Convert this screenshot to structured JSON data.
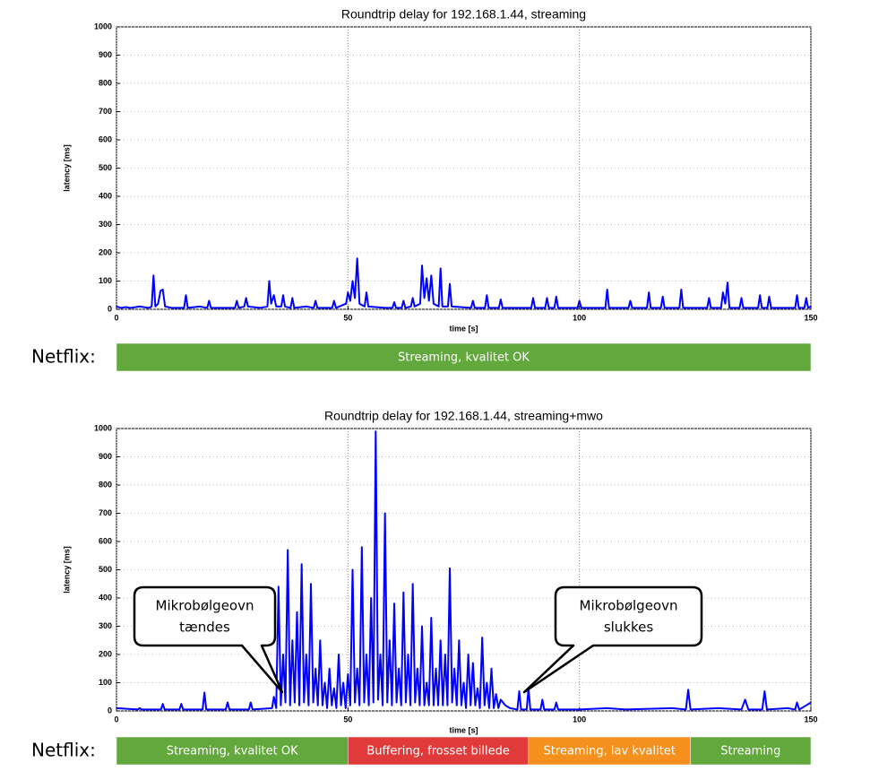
{
  "chart_data": [
    {
      "type": "line",
      "title": "Roundtrip delay for 192.168.1.44, streaming",
      "xlabel": "time [s]",
      "ylabel": "latency [ms]",
      "xlim": [
        0,
        150
      ],
      "ylim": [
        0,
        1000
      ],
      "xticks": [
        0,
        50,
        100,
        150
      ],
      "yticks": [
        0,
        100,
        200,
        300,
        400,
        500,
        600,
        700,
        800,
        900,
        1000
      ],
      "grid": true,
      "color": "#0000ff",
      "x": [
        0,
        1,
        2,
        3,
        5,
        7,
        7.6,
        8,
        8.4,
        9,
        9.5,
        10,
        10.5,
        12,
        14.6,
        15,
        15.4,
        18,
        19.6,
        20,
        20.4,
        24,
        25.6,
        26,
        26.4,
        27.6,
        28,
        28.4,
        31,
        32.6,
        33,
        33.4,
        34,
        34.5,
        35.6,
        36,
        36.4,
        37.6,
        38,
        38.4,
        41,
        42.6,
        43,
        43.4,
        46.6,
        47,
        47.4,
        49.6,
        50,
        50.5,
        51,
        51.5,
        52,
        52.5,
        53.6,
        54,
        54.4,
        58,
        59.6,
        60,
        60.4,
        61.6,
        62,
        62.4,
        63.6,
        64,
        64.4,
        65.6,
        66,
        66.5,
        67,
        67.5,
        68,
        68.5,
        69.6,
        70,
        70.4,
        71.6,
        72,
        72.4,
        76.6,
        77,
        77.4,
        79.6,
        80,
        80.4,
        82.6,
        83,
        83.4,
        89.6,
        90,
        90.4,
        92.6,
        93,
        93.4,
        94.6,
        95,
        95.4,
        99.6,
        100,
        100.4,
        105.6,
        106,
        106.4,
        110.6,
        111,
        111.4,
        114.6,
        115,
        115.4,
        117.6,
        118,
        118.4,
        121.6,
        122,
        122.4,
        127.6,
        128,
        128.4,
        130.6,
        131,
        131.5,
        132,
        132.4,
        134.6,
        135,
        135.4,
        138.6,
        139,
        139.4,
        140.6,
        141,
        141.4,
        146.6,
        147,
        147.4,
        148.6,
        149,
        149.4,
        150
      ],
      "values": [
        10,
        5,
        8,
        5,
        10,
        5,
        10,
        120,
        10,
        20,
        65,
        70,
        10,
        5,
        5,
        50,
        5,
        10,
        5,
        30,
        5,
        5,
        5,
        30,
        5,
        10,
        40,
        10,
        5,
        10,
        100,
        20,
        50,
        10,
        10,
        50,
        10,
        5,
        40,
        5,
        10,
        5,
        30,
        5,
        5,
        30,
        5,
        20,
        60,
        30,
        100,
        40,
        180,
        20,
        10,
        60,
        10,
        5,
        5,
        25,
        5,
        5,
        30,
        5,
        10,
        40,
        10,
        20,
        155,
        40,
        110,
        30,
        120,
        20,
        10,
        145,
        10,
        10,
        90,
        10,
        5,
        30,
        5,
        5,
        50,
        5,
        5,
        35,
        5,
        5,
        40,
        5,
        5,
        40,
        5,
        5,
        45,
        5,
        5,
        30,
        5,
        5,
        70,
        5,
        5,
        30,
        5,
        5,
        60,
        5,
        5,
        45,
        5,
        5,
        70,
        5,
        5,
        40,
        5,
        5,
        60,
        20,
        95,
        5,
        5,
        40,
        5,
        5,
        50,
        5,
        5,
        45,
        5,
        5,
        50,
        5,
        5,
        40,
        5,
        10
      ],
      "netflix": {
        "label": "Netflix:",
        "segments": [
          {
            "label": "Streaming, kvalitet OK",
            "start": 0,
            "end": 150,
            "color": "#62a83c"
          }
        ]
      }
    },
    {
      "type": "line",
      "title": "Roundtrip delay for 192.168.1.44, streaming+mwo",
      "xlabel": "time [s]",
      "ylabel": "latency [ms]",
      "xlim": [
        0,
        150
      ],
      "ylim": [
        0,
        1000
      ],
      "xticks": [
        0,
        50,
        100,
        150
      ],
      "yticks": [
        0,
        100,
        200,
        300,
        400,
        500,
        600,
        700,
        800,
        900,
        1000
      ],
      "grid": true,
      "color": "#0000ff",
      "x": [
        0,
        4.6,
        5,
        5.4,
        9.6,
        10,
        10.4,
        13.6,
        14,
        14.4,
        18.6,
        19,
        19.4,
        23.6,
        24,
        24.4,
        28.6,
        29,
        29.4,
        33.6,
        34,
        34.5,
        35,
        35.5,
        36,
        36.5,
        37,
        37.5,
        38,
        38.5,
        39,
        39.5,
        40,
        40.5,
        41,
        41.5,
        42,
        42.5,
        43,
        43.5,
        44,
        44.5,
        45,
        45.5,
        46,
        46.5,
        47,
        47.5,
        48,
        48.5,
        49,
        49.5,
        50,
        50.5,
        51,
        51.5,
        52,
        52.5,
        53,
        53.5,
        54,
        54.5,
        55,
        55.5,
        56,
        56.5,
        57,
        57.5,
        58,
        58.5,
        59,
        59.5,
        60,
        60.5,
        61,
        61.5,
        62,
        62.5,
        63,
        63.5,
        64,
        64.5,
        65,
        65.5,
        66,
        66.5,
        67,
        67.5,
        68,
        68.5,
        69,
        69.5,
        70,
        70.5,
        71,
        71.5,
        72,
        72.5,
        73,
        73.5,
        74,
        74.5,
        75,
        75.5,
        76,
        76.5,
        77,
        77.5,
        78,
        78.5,
        79,
        79.5,
        80,
        80.5,
        81,
        81.5,
        82,
        82.5,
        83,
        84,
        85,
        86.6,
        87,
        87.4,
        88.6,
        89,
        89.4,
        91.6,
        92,
        92.4,
        94.6,
        95,
        95.4,
        100,
        106,
        110,
        120,
        123,
        123.5,
        124,
        130,
        135,
        135.8,
        136.5,
        139.5,
        140,
        140.5,
        145,
        146.6,
        147,
        147.5,
        150
      ],
      "values": [
        10,
        5,
        10,
        5,
        5,
        25,
        5,
        5,
        25,
        5,
        5,
        65,
        5,
        5,
        30,
        5,
        5,
        30,
        5,
        10,
        50,
        10,
        440,
        20,
        200,
        30,
        570,
        20,
        250,
        30,
        350,
        20,
        520,
        30,
        200,
        20,
        450,
        30,
        150,
        20,
        250,
        20,
        100,
        10,
        150,
        20,
        80,
        10,
        200,
        20,
        100,
        10,
        130,
        20,
        500,
        30,
        150,
        20,
        580,
        30,
        200,
        20,
        400,
        30,
        990,
        40,
        200,
        20,
        700,
        30,
        250,
        20,
        380,
        30,
        150,
        20,
        420,
        30,
        200,
        20,
        450,
        30,
        150,
        20,
        300,
        20,
        100,
        20,
        330,
        20,
        150,
        20,
        250,
        20,
        200,
        20,
        505,
        30,
        150,
        20,
        250,
        20,
        100,
        10,
        200,
        20,
        170,
        20,
        80,
        10,
        260,
        20,
        100,
        10,
        150,
        10,
        60,
        10,
        40,
        20,
        10,
        5,
        70,
        5,
        5,
        80,
        5,
        5,
        40,
        5,
        5,
        30,
        5,
        5,
        10,
        5,
        10,
        5,
        75,
        5,
        10,
        5,
        40,
        5,
        5,
        70,
        5,
        10,
        5,
        30,
        5,
        30
      ],
      "annotations": [
        {
          "lines": [
            "Mikrobølgeovn",
            "tændes"
          ]
        },
        {
          "lines": [
            "Mikrobølgeovn",
            "slukkes"
          ]
        }
      ],
      "netflix": {
        "label": "Netflix:",
        "segments": [
          {
            "label": "Streaming, kvalitet OK",
            "start": 0,
            "end": 50,
            "color": "#62a83c"
          },
          {
            "label": "Buffering, frosset billede",
            "start": 50,
            "end": 89,
            "color": "#e03a3a"
          },
          {
            "label": "Streaming, lav kvalitet",
            "start": 89,
            "end": 124,
            "color": "#f4901e"
          },
          {
            "label": "Streaming",
            "start": 124,
            "end": 150,
            "color": "#62a83c"
          }
        ]
      }
    }
  ]
}
